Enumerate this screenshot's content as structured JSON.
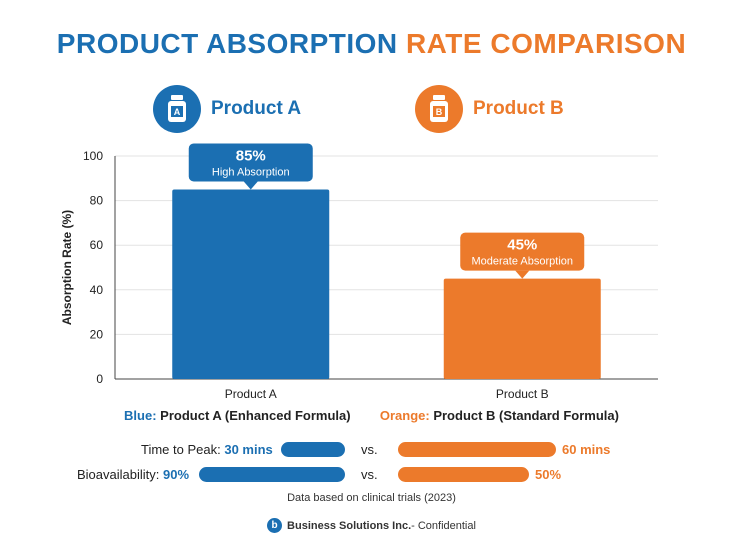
{
  "header": {
    "title_part1": "PRODUCT ABSORPTION",
    "title_part2": "RATE COMPARISON",
    "product_a": "Product A",
    "product_b": "Product B",
    "icon_a_letter": "A",
    "icon_b_letter": "B"
  },
  "colors": {
    "blue": "#1b6fb2",
    "orange": "#ec7a2b"
  },
  "chart_data": {
    "type": "bar",
    "title": "PRODUCT ABSORPTION RATE COMPARISON",
    "categories": [
      "Product A",
      "Product B"
    ],
    "values": [
      85,
      45
    ],
    "colors": [
      "#1b6fb2",
      "#ec7a2b"
    ],
    "value_labels": [
      "85%",
      "45%"
    ],
    "annotations": [
      "High Absorption",
      "Moderate Absorption"
    ],
    "xlabel": "",
    "ylabel": "Absorption Rate (%)",
    "ylim": [
      0,
      100
    ],
    "yticks": [
      0,
      20,
      40,
      60,
      80,
      100
    ],
    "grid": true
  },
  "legend": {
    "blue_key": "Blue:",
    "blue_text": "Product A (Enhanced Formula)",
    "orange_key": "Orange:",
    "orange_text": "Product B (Standard Formula)"
  },
  "metrics": [
    {
      "label": "Time to Peak:",
      "value_a": "30 mins",
      "vs": "vs.",
      "value_b": "60 mins"
    },
    {
      "label": "Bioavailability:",
      "value_a": "90%",
      "vs": "vs.",
      "value_b": "50%"
    }
  ],
  "note": "Data based on clinical trials (2023)",
  "footer": {
    "logo_letter": "b",
    "company": "Business Solutions Inc.",
    "suffix": " - Confidential"
  }
}
